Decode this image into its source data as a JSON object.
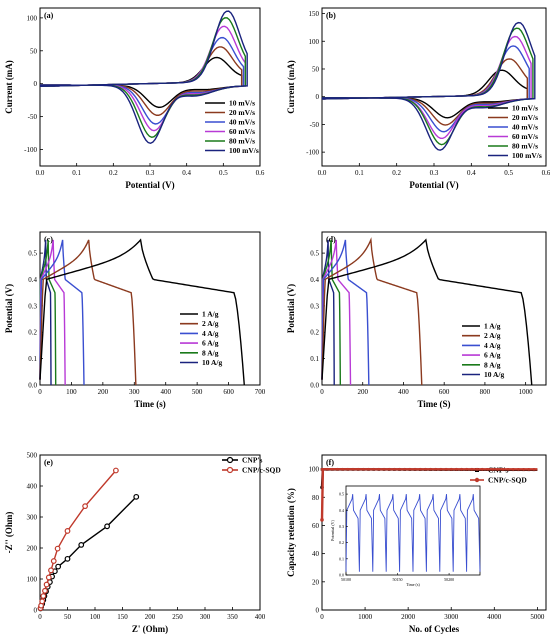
{
  "figure": {
    "background": "#ffffff"
  },
  "chart_data": [
    {
      "panel": "(a)",
      "type": "line",
      "xlabel": "Potential (V)",
      "ylabel": "Current (mA)",
      "xlim": [
        0.0,
        0.6
      ],
      "ylim": [
        -125,
        115
      ],
      "xticks": [
        "0.0",
        "0.1",
        "0.2",
        "0.3",
        "0.4",
        "0.5",
        "0.6"
      ],
      "yticks": [
        "-100",
        "-50",
        "0",
        "50",
        "100"
      ],
      "legend_position": "right",
      "series": [
        {
          "name": "10 mV/s",
          "color": "#000000",
          "ox": 0.48,
          "oy": 37,
          "rx": 0.325,
          "ry": -33,
          "xmax": 0.55
        },
        {
          "name": "20 mV/s",
          "color": "#8b3a1f",
          "ox": 0.49,
          "oy": 53,
          "rx": 0.32,
          "ry": -45,
          "xmax": 0.55
        },
        {
          "name": "40 mV/s",
          "color": "#3a4fd0",
          "ox": 0.495,
          "oy": 67,
          "rx": 0.315,
          "ry": -58,
          "xmax": 0.555
        },
        {
          "name": "60 mV/s",
          "color": "#b83ad6",
          "ox": 0.5,
          "oy": 84,
          "rx": 0.31,
          "ry": -68,
          "xmax": 0.56
        },
        {
          "name": "80 mV/s",
          "color": "#1a7a1a",
          "ox": 0.505,
          "oy": 97,
          "rx": 0.305,
          "ry": -78,
          "xmax": 0.56
        },
        {
          "name": "100 mV/s",
          "color": "#1a237e",
          "ox": 0.51,
          "oy": 107,
          "rx": 0.3,
          "ry": -87,
          "xmax": 0.565
        }
      ]
    },
    {
      "panel": "(b)",
      "type": "line",
      "xlabel": "Potential (V)",
      "ylabel": "Current (mA)",
      "xlim": [
        0.0,
        0.6
      ],
      "ylim": [
        -125,
        160
      ],
      "xticks": [
        "0.0",
        "0.1",
        "0.2",
        "0.3",
        "0.4",
        "0.5",
        "0.6"
      ],
      "yticks": [
        "-100",
        "-50",
        "0",
        "50",
        "100",
        "150"
      ],
      "legend_position": "right",
      "series": [
        {
          "name": "10 mV/s",
          "color": "#000000",
          "ox": 0.48,
          "oy": 45,
          "rx": 0.335,
          "ry": -35,
          "xmax": 0.55
        },
        {
          "name": "20 mV/s",
          "color": "#8b3a1f",
          "ox": 0.5,
          "oy": 65,
          "rx": 0.33,
          "ry": -48,
          "xmax": 0.55
        },
        {
          "name": "40 mV/s",
          "color": "#3a4fd0",
          "ox": 0.51,
          "oy": 88,
          "rx": 0.325,
          "ry": -60,
          "xmax": 0.555
        },
        {
          "name": "60 mV/s",
          "color": "#b83ad6",
          "ox": 0.515,
          "oy": 105,
          "rx": 0.32,
          "ry": -72,
          "xmax": 0.56
        },
        {
          "name": "80 mV/s",
          "color": "#1a7a1a",
          "ox": 0.52,
          "oy": 120,
          "rx": 0.32,
          "ry": -83,
          "xmax": 0.565
        },
        {
          "name": "100 mV/s",
          "color": "#1a237e",
          "ox": 0.525,
          "oy": 130,
          "rx": 0.315,
          "ry": -93,
          "xmax": 0.57
        }
      ]
    },
    {
      "panel": "(c)",
      "type": "line",
      "xlabel": "Time (s)",
      "ylabel": "Potential (V)",
      "xlim": [
        0,
        700
      ],
      "ylim": [
        0.0,
        0.58
      ],
      "xticks": [
        "0",
        "100",
        "200",
        "300",
        "400",
        "500",
        "600",
        "700"
      ],
      "yticks": [
        "0.0",
        "0.1",
        "0.2",
        "0.3",
        "0.4",
        "0.5"
      ],
      "legend_position": "right",
      "series": [
        {
          "name": "1 A/g",
          "color": "#000000",
          "tc": 320,
          "td": 650
        },
        {
          "name": "2 A/g",
          "color": "#8b3a1f",
          "tc": 155,
          "td": 305
        },
        {
          "name": "4 A/g",
          "color": "#3a4fd0",
          "tc": 72,
          "td": 140
        },
        {
          "name": "6 A/g",
          "color": "#b83ad6",
          "tc": 42,
          "td": 80
        },
        {
          "name": "8 A/g",
          "color": "#1a7a1a",
          "tc": 26,
          "td": 50
        },
        {
          "name": "10 A/g",
          "color": "#1a237e",
          "tc": 18,
          "td": 35
        }
      ]
    },
    {
      "panel": "(d)",
      "type": "line",
      "xlabel": "Time (S)",
      "ylabel": "Potential (V)",
      "xlim": [
        0,
        1100
      ],
      "ylim": [
        0.0,
        0.58
      ],
      "xticks": [
        "0",
        "200",
        "400",
        "600",
        "800",
        "1000"
      ],
      "yticks": [
        "0.0",
        "0.1",
        "0.2",
        "0.3",
        "0.4",
        "0.5"
      ],
      "legend_position": "right",
      "series": [
        {
          "name": "1 A/g",
          "color": "#000000",
          "tc": 510,
          "td": 1030
        },
        {
          "name": "2 A/g",
          "color": "#8b3a1f",
          "tc": 240,
          "td": 490
        },
        {
          "name": "4 A/g",
          "color": "#3a4fd0",
          "tc": 115,
          "td": 230
        },
        {
          "name": "6 A/g",
          "color": "#b83ad6",
          "tc": 70,
          "td": 140
        },
        {
          "name": "8 A/g",
          "color": "#1a7a1a",
          "tc": 45,
          "td": 90
        },
        {
          "name": "10 A/g",
          "color": "#1a237e",
          "tc": 30,
          "td": 60
        }
      ]
    },
    {
      "panel": "(e)",
      "type": "scatter",
      "xlabel": "Z' (Ohm)",
      "ylabel": "-Z'' (Ohm)",
      "xlim": [
        0,
        400
      ],
      "ylim": [
        0,
        500
      ],
      "xticks": [
        "0",
        "50",
        "100",
        "150",
        "200",
        "250",
        "300",
        "350",
        "400"
      ],
      "yticks": [
        "0",
        "100",
        "200",
        "300",
        "400",
        "500"
      ],
      "legend_position": "top-right",
      "series": [
        {
          "name": "CNP's",
          "color": "#000000",
          "marker_fill": "#ffffff",
          "x": [
            1,
            2,
            4,
            6,
            8,
            11,
            14,
            18,
            22,
            27,
            33,
            50,
            75,
            122,
            175
          ],
          "y": [
            5,
            10,
            20,
            32,
            45,
            60,
            75,
            90,
            108,
            125,
            140,
            165,
            210,
            270,
            365
          ]
        },
        {
          "name": "CNP/c-SQD",
          "color": "#c0392b",
          "marker_fill": "#ffffff",
          "x": [
            1,
            2,
            4,
            6,
            9,
            12,
            16,
            20,
            25,
            32,
            50,
            82,
            138
          ],
          "y": [
            6,
            14,
            28,
            45,
            62,
            82,
            105,
            128,
            158,
            198,
            255,
            335,
            450
          ]
        }
      ]
    },
    {
      "panel": "(f)",
      "type": "scatter",
      "xlabel": "No. of Cycles",
      "ylabel": "Capacity retention (%)",
      "xlim": [
        0,
        5200
      ],
      "ylim": [
        0,
        110
      ],
      "xticks": [
        "0",
        "1000",
        "2000",
        "3000",
        "4000",
        "5000"
      ],
      "yticks": [
        "0",
        "20",
        "40",
        "60",
        "80",
        "100"
      ],
      "legend_position": "top-right",
      "series": [
        {
          "name": "CNP's",
          "color": "#000000",
          "x": [
            0,
            20,
            100,
            5000
          ],
          "y": [
            87,
            99.8,
            99.8,
            99.5
          ]
        },
        {
          "name": "CNP/c-SQD",
          "color": "#c0392b",
          "x": [
            0,
            20,
            100,
            5000
          ],
          "y": [
            64,
            99.9,
            99.9,
            99.8
          ]
        }
      ],
      "inset": {
        "type": "line",
        "xlabel": "Time (s)",
        "ylabel": "Potential (V)",
        "xlim": [
          50100,
          50230
        ],
        "ylim": [
          0.0,
          0.55
        ],
        "xticks": [
          "50100",
          "50150",
          "50200"
        ],
        "yticks": [
          "0.0",
          "0.1",
          "0.2",
          "0.3",
          "0.4",
          "0.5"
        ],
        "cycles": 10,
        "vmin": 0.02,
        "vmax": 0.5,
        "color": "#3a4fd0"
      }
    }
  ]
}
